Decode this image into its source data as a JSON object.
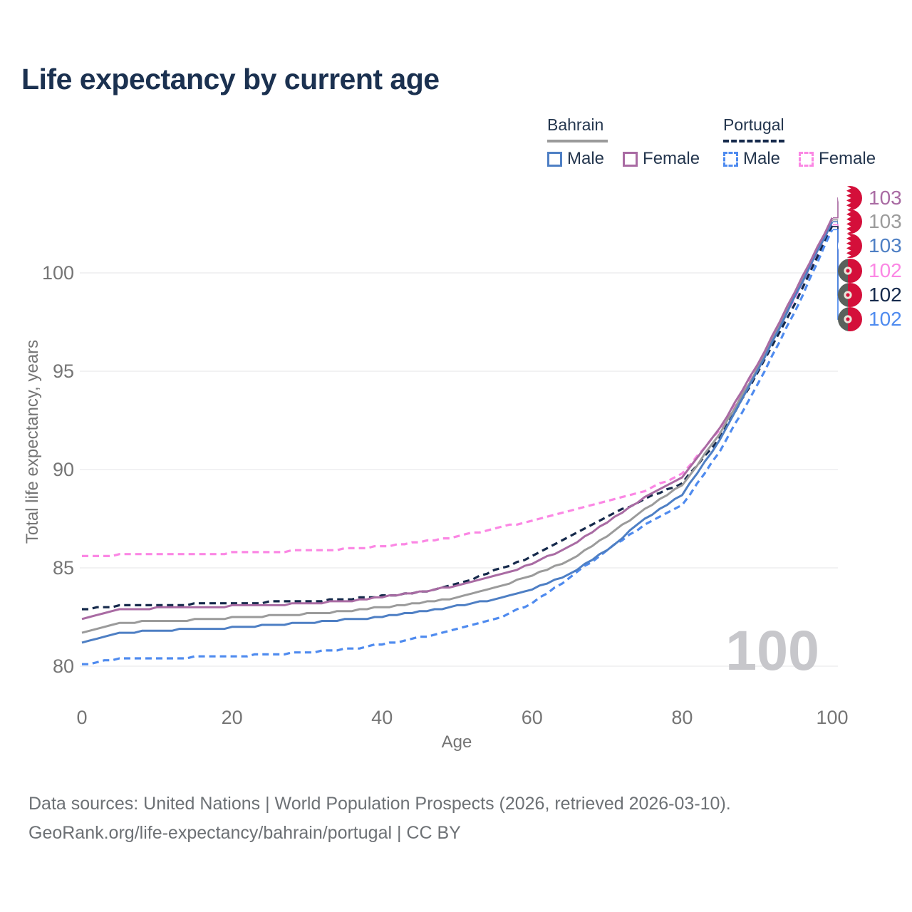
{
  "title": "Life expectancy by current age",
  "watermark": "100",
  "colors": {
    "title_text": "#1b3150",
    "axis_text": "#757575",
    "gridline": "#eaeaec",
    "watermark": "#c7c7cb",
    "footer_text": "#6d7175",
    "bahrain_male": "#4e7fc4",
    "bahrain_female": "#a96ba3",
    "bahrain_both": "#9b9b9b",
    "portugal_male": "#4f8bef",
    "portugal_female": "#fb87e4",
    "portugal_both": "#15294b"
  },
  "legend": {
    "groups": [
      {
        "label": "Bahrain",
        "underline_color": "#9a9a9a",
        "underline_style": "solid",
        "items": [
          {
            "label": "Male",
            "color": "#4e7fc4",
            "dashed": false
          },
          {
            "label": "Female",
            "color": "#a96ba3",
            "dashed": false
          }
        ]
      },
      {
        "label": "Portugal",
        "underline_color": "#15294b",
        "underline_style": "dashed",
        "items": [
          {
            "label": "Male",
            "color": "#4f8bef",
            "dashed": true
          },
          {
            "label": "Female",
            "color": "#fb87e4",
            "dashed": true
          }
        ]
      }
    ]
  },
  "axes": {
    "y_title": "Total life expectancy, years",
    "x_title": "Age",
    "y_ticks": [
      100,
      95,
      90,
      85,
      80
    ],
    "x_ticks": [
      0,
      20,
      40,
      60,
      80,
      100
    ]
  },
  "callouts": [
    {
      "value": "103",
      "color": "#a96ba3",
      "flag": "bahrain",
      "series": "Bahrain Female",
      "tip_value": 102.8
    },
    {
      "value": "103",
      "color": "#9b9b9b",
      "flag": "bahrain",
      "series": "Bahrain Both sexes",
      "tip_value": 102.7
    },
    {
      "value": "103",
      "color": "#4e7fc4",
      "flag": "bahrain",
      "series": "Bahrain Male",
      "tip_value": 102.6
    },
    {
      "value": "102",
      "color": "#fb87e4",
      "flag": "portugal",
      "series": "Portugal Female",
      "tip_value": 102.45
    },
    {
      "value": "102",
      "color": "#15294b",
      "flag": "portugal",
      "series": "Portugal Both sexes",
      "tip_value": 102.35
    },
    {
      "value": "102",
      "color": "#4f8bef",
      "flag": "portugal",
      "series": "Portugal Male",
      "tip_value": 102.2
    }
  ],
  "chart_data": {
    "type": "line",
    "title": "Life expectancy by current age",
    "xlabel": "Age",
    "ylabel": "Total life expectancy, years",
    "xlim": [
      0,
      100
    ],
    "ylim": [
      79,
      103.5
    ],
    "grid": "horizontal",
    "legend_position": "top-right",
    "x": [
      0,
      5,
      10,
      15,
      20,
      25,
      30,
      35,
      40,
      45,
      50,
      55,
      60,
      65,
      70,
      75,
      80,
      85,
      90,
      95,
      100
    ],
    "series": [
      {
        "name": "Portugal Female",
        "country": "Portugal",
        "sex": "female",
        "color": "#fb87e4",
        "dash": true,
        "end_label": 102,
        "values": [
          85.6,
          85.65,
          85.7,
          85.7,
          85.75,
          85.8,
          85.9,
          85.95,
          86.1,
          86.3,
          86.6,
          87.0,
          87.4,
          87.9,
          88.35,
          88.9,
          89.8,
          92.0,
          95.2,
          98.7,
          102.45
        ]
      },
      {
        "name": "Portugal Both sexes",
        "country": "Portugal",
        "sex": "both",
        "color": "#15294b",
        "dash": true,
        "end_label": 102,
        "values": [
          82.9,
          83.05,
          83.1,
          83.15,
          83.2,
          83.25,
          83.3,
          83.4,
          83.55,
          83.75,
          84.15,
          84.85,
          85.6,
          86.6,
          87.6,
          88.5,
          89.3,
          91.6,
          94.9,
          98.4,
          102.35
        ]
      },
      {
        "name": "Portugal Male",
        "country": "Portugal",
        "sex": "male",
        "color": "#4f8bef",
        "dash": true,
        "end_label": 102,
        "values": [
          80.1,
          80.35,
          80.4,
          80.45,
          80.5,
          80.6,
          80.7,
          80.85,
          81.1,
          81.45,
          81.9,
          82.35,
          83.2,
          84.5,
          85.9,
          87.2,
          88.2,
          90.9,
          94.3,
          98.0,
          102.2
        ]
      },
      {
        "name": "Bahrain Both sexes",
        "country": "Bahrain",
        "sex": "both",
        "color": "#9b9b9b",
        "dash": false,
        "end_label": 103,
        "values": [
          81.7,
          82.2,
          82.3,
          82.35,
          82.45,
          82.55,
          82.65,
          82.8,
          83.0,
          83.2,
          83.5,
          84.0,
          84.6,
          85.4,
          86.6,
          88.0,
          89.2,
          91.8,
          95.1,
          98.85,
          102.7
        ]
      },
      {
        "name": "Bahrain Male",
        "country": "Bahrain",
        "sex": "male",
        "color": "#4e7fc4",
        "dash": false,
        "end_label": 103,
        "values": [
          81.2,
          81.7,
          81.8,
          81.9,
          81.95,
          82.1,
          82.2,
          82.35,
          82.5,
          82.75,
          83.05,
          83.4,
          83.9,
          84.7,
          85.9,
          87.5,
          88.7,
          91.5,
          94.95,
          98.75,
          102.6
        ]
      },
      {
        "name": "Bahrain Female",
        "country": "Bahrain",
        "sex": "female",
        "color": "#a96ba3",
        "dash": false,
        "end_label": 103,
        "values": [
          82.4,
          82.9,
          82.95,
          83.0,
          83.05,
          83.1,
          83.2,
          83.3,
          83.5,
          83.75,
          84.1,
          84.55,
          85.2,
          86.1,
          87.3,
          88.6,
          89.6,
          92.1,
          95.3,
          99.0,
          102.8
        ]
      }
    ]
  },
  "footer": {
    "line1": "Data sources: United Nations | World Population Prospects (2026, retrieved 2026-03-10).",
    "line2": "GeoRank.org/life-expectancy/bahrain/portugal | CC BY"
  }
}
